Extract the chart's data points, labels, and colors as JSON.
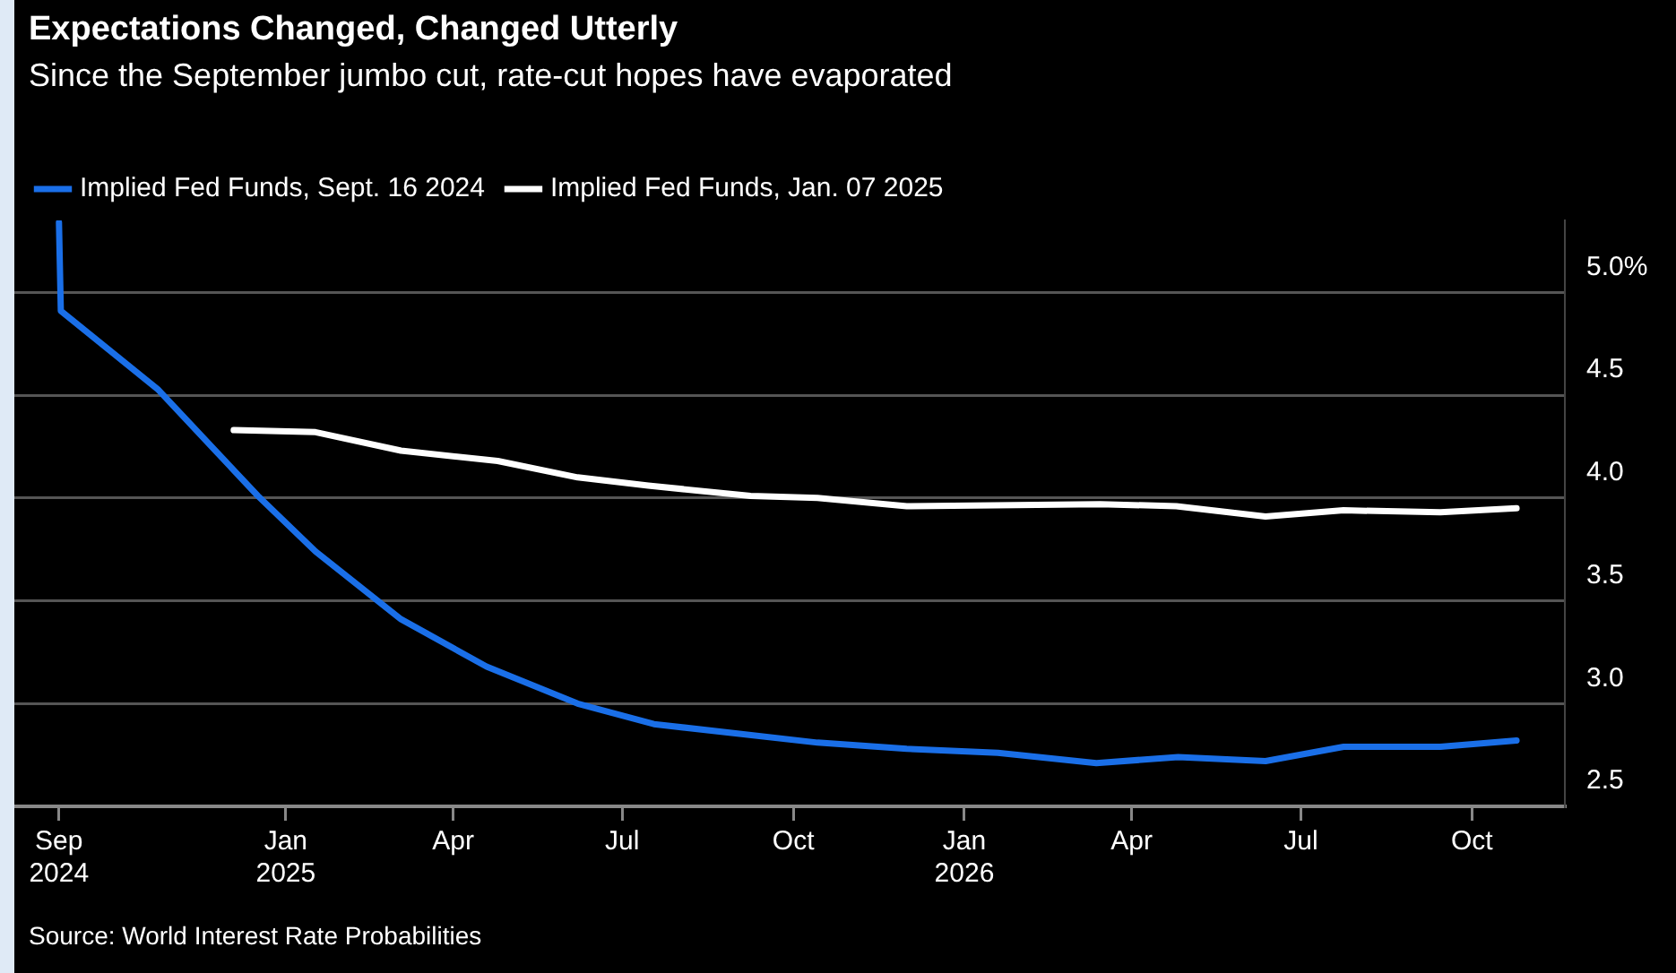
{
  "chart_data": {
    "type": "line",
    "title": "Expectations Changed, Changed Utterly",
    "subtitle": "Since the September jumbo cut, rate-cut hopes have evaporated",
    "annotations": [
      "Source: World Interest Rate Probabilities"
    ],
    "series": [
      {
        "name": "Implied Fed Funds, Sept. 16 2024",
        "color": "#1a6fe8",
        "x": [
          "2024-09-01",
          "2024-09-02",
          "2024-10-24",
          "2024-12-17",
          "2025-01-17",
          "2025-03-04",
          "2025-04-19",
          "2025-06-07",
          "2025-07-18",
          "2025-10-14",
          "2025-12-01",
          "2026-01-19",
          "2026-03-13",
          "2026-04-26",
          "2026-06-12",
          "2026-07-24",
          "2026-09-14",
          "2026-10-25"
        ],
        "values": [
          5.34,
          4.91,
          4.53,
          4.01,
          3.74,
          3.41,
          3.18,
          3.0,
          2.9,
          2.81,
          2.78,
          2.76,
          2.71,
          2.74,
          2.72,
          2.79,
          2.79,
          2.82
        ]
      },
      {
        "name": "Implied Fed Funds, Jan. 07 2025",
        "color": "#ffffff",
        "x": [
          "2024-12-04",
          "2025-01-17",
          "2025-03-04",
          "2025-04-25",
          "2025-06-07",
          "2025-07-15",
          "2025-09-08",
          "2025-10-14",
          "2025-12-01",
          "2026-03-15",
          "2026-04-25",
          "2026-06-12",
          "2026-07-24",
          "2026-09-14",
          "2026-10-25"
        ],
        "values": [
          4.33,
          4.32,
          4.23,
          4.18,
          4.1,
          4.06,
          4.01,
          4.0,
          3.96,
          3.97,
          3.96,
          3.91,
          3.94,
          3.93,
          3.95
        ]
      }
    ],
    "xlim": [
      "2024-08-08",
      "2026-11-20"
    ],
    "xticks": [
      {
        "value": "2024-09-01",
        "label": "Sep 2024"
      },
      {
        "value": "2025-01-01",
        "label": "Jan 2025"
      },
      {
        "value": "2025-04-01",
        "label": "Apr"
      },
      {
        "value": "2025-07-01",
        "label": "Jul"
      },
      {
        "value": "2025-10-01",
        "label": "Oct"
      },
      {
        "value": "2026-01-01",
        "label": "Jan 2026"
      },
      {
        "value": "2026-04-01",
        "label": "Apr"
      },
      {
        "value": "2026-07-01",
        "label": "Jul"
      },
      {
        "value": "2026-10-01",
        "label": "Oct"
      }
    ],
    "ylim": [
      2.5,
      5.35
    ],
    "yticks": [
      {
        "value": 2.5,
        "label": "2.5"
      },
      {
        "value": 3,
        "label": "3.0"
      },
      {
        "value": 3.5,
        "label": "3.5"
      },
      {
        "value": 4,
        "label": "4.0"
      },
      {
        "value": 4.5,
        "label": "4.5"
      },
      {
        "value": 5,
        "label": "5.0%"
      }
    ],
    "grid": "y",
    "legend": "top left",
    "marker": "none",
    "line_style": "solid"
  }
}
